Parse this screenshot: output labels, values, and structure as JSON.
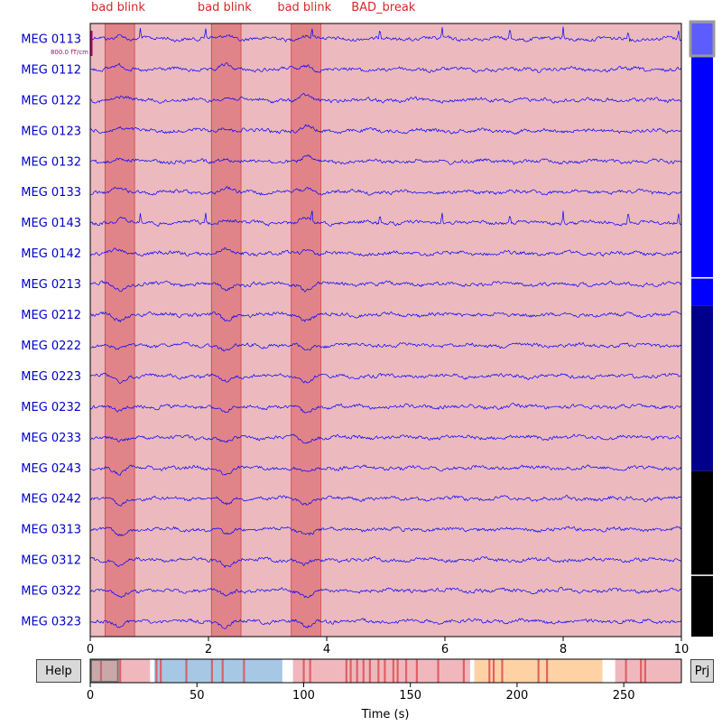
{
  "buttons": {
    "help": "Help",
    "projector": "Prj"
  },
  "colors": {
    "trace": "#0000ff",
    "channel_label": "#0000cc",
    "annotation_bad_blink": "#d62728",
    "annotation_bad_break": "#d62728",
    "bad_span_fill": "#e6a2a8",
    "blink_fill": "#d9595c",
    "overview_blue": "#a6c8e5",
    "overview_orange": "#ffd2a6",
    "scale_bar": "#b0006a"
  },
  "chart_data": [
    {
      "type": "line",
      "panel": "raw-traces",
      "xlabel": "",
      "xlim": [
        0,
        10
      ],
      "x_ticks": [
        0,
        2,
        4,
        6,
        8,
        10
      ],
      "channels": [
        "MEG 0113",
        "MEG 0112",
        "MEG 0122",
        "MEG 0123",
        "MEG 0132",
        "MEG 0133",
        "MEG 0143",
        "MEG 0142",
        "MEG 0213",
        "MEG 0212",
        "MEG 0222",
        "MEG 0223",
        "MEG 0232",
        "MEG 0233",
        "MEG 0243",
        "MEG 0242",
        "MEG 0313",
        "MEG 0312",
        "MEG 0322",
        "MEG 0323"
      ],
      "scale_label": "800.0 fT/cm",
      "spikes_s": [
        0.85,
        1.95,
        3.75,
        4.9,
        5.95,
        7.1,
        8.0,
        9.1,
        9.95
      ],
      "annotations": [
        {
          "label": "BAD_break",
          "start": 0,
          "end": 10
        },
        {
          "label": "bad blink",
          "start": 0.25,
          "end": 0.75
        },
        {
          "label": "bad blink",
          "start": 2.05,
          "end": 2.55
        },
        {
          "label": "bad blink",
          "start": 3.4,
          "end": 3.9
        }
      ],
      "annotation_labels": [
        {
          "text": "bad blink",
          "at": 0.0
        },
        {
          "text": "bad blink",
          "at": 1.8
        },
        {
          "text": "bad blink",
          "at": 3.15
        },
        {
          "text": "BAD_break",
          "at": 4.4
        }
      ],
      "grid": false
    },
    {
      "type": "bar",
      "panel": "overview",
      "xlabel": "Time (s)",
      "xlim": [
        0,
        277
      ],
      "x_ticks": [
        0,
        50,
        100,
        150,
        200,
        250
      ],
      "view_window": [
        0,
        10
      ],
      "bad_break_spans": [
        [
          0,
          28
        ],
        [
          95,
          178
        ],
        [
          180,
          240
        ],
        [
          246,
          277
        ]
      ],
      "blue_spans": [
        [
          30,
          90
        ]
      ],
      "orange_spans": [
        [
          180,
          240
        ]
      ],
      "event_lines": [
        5,
        14,
        31,
        33,
        45,
        57,
        62,
        72,
        100,
        103,
        120,
        122,
        125,
        128,
        131,
        135,
        138,
        142,
        144,
        148,
        153,
        163,
        175,
        187,
        189,
        193,
        210,
        214,
        251,
        258,
        260
      ]
    },
    {
      "type": "bar",
      "panel": "channel-scrollbar",
      "segments": [
        {
          "color": "#0000ff",
          "start": 0,
          "end": 0.46
        },
        {
          "color": "#00008b",
          "start": 0.46,
          "end": 0.73
        },
        {
          "color": "#000000",
          "start": 0.73,
          "end": 1.0
        }
      ],
      "separators": [
        0.415,
        0.9
      ],
      "window": [
        0,
        0.05
      ]
    }
  ]
}
